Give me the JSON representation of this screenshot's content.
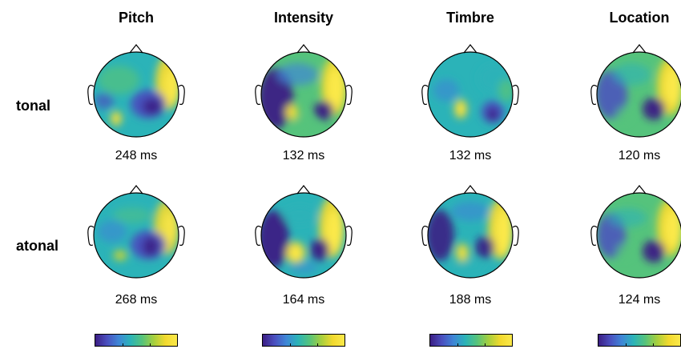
{
  "columns": [
    {
      "title": "Pitch"
    },
    {
      "title": "Intensity"
    },
    {
      "title": "Timbre"
    },
    {
      "title": "Location"
    }
  ],
  "rows": [
    {
      "label": "tonal",
      "latencies": [
        "248 ms",
        "132 ms",
        "132 ms",
        "120 ms"
      ]
    },
    {
      "label": "atonal",
      "latencies": [
        "268 ms",
        "164 ms",
        "188 ms",
        "124 ms"
      ]
    }
  ],
  "colormap": [
    "#3b1e84",
    "#4a4fbf",
    "#3e86d6",
    "#2bb3b8",
    "#55c37c",
    "#a5cf3e",
    "#f2d92e",
    "#fbe94a"
  ],
  "colors": {
    "outline": "#000000",
    "background": "#ffffff"
  }
}
